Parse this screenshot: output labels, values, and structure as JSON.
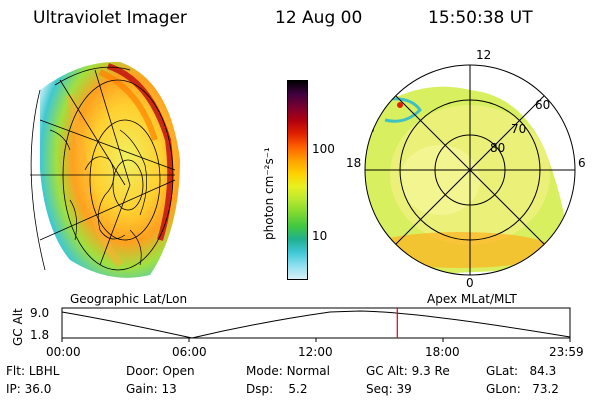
{
  "header": {
    "instrument": "Ultraviolet Imager",
    "date": "12 Aug 00",
    "time": "15:50:38 UT"
  },
  "panels": {
    "left_label": "Geographic Lat/Lon",
    "right_label": "Apex MLat/MLT"
  },
  "colorbar": {
    "unit_label": "photon cm⁻²s⁻¹",
    "ticks": [
      "100",
      "10"
    ],
    "colors": [
      "#000000",
      "#400040",
      "#7a0030",
      "#b00010",
      "#e02000",
      "#ff6000",
      "#ffa000",
      "#ffd000",
      "#e8f020",
      "#b8e830",
      "#80d830",
      "#40c840",
      "#20b090",
      "#40c8d8",
      "#90e0f0",
      "#d8f0f8"
    ]
  },
  "polar": {
    "mlt_labels": [
      "12",
      "6",
      "0",
      "18"
    ],
    "mlat_labels": [
      "60",
      "70",
      "80"
    ]
  },
  "altitude_plot": {
    "ylabel": "GC Alt",
    "yticks": [
      "9.0",
      "1.8"
    ],
    "xticks": [
      "00:00",
      "06:00",
      "12:00",
      "18:00",
      "23:59"
    ],
    "current_time_fraction": 0.66
  },
  "status": {
    "flt_label": "Flt:",
    "flt_value": "LBHL",
    "ip_label": "IP:",
    "ip_value": "36.0",
    "door_label": "Door:",
    "door_value": "Open",
    "gain_label": "Gain:",
    "gain_value": "13",
    "mode_label": "Mode:",
    "mode_value": "Normal",
    "dsp_label": "Dsp:",
    "dsp_value": "5.2",
    "gcalt_label": "GC Alt:",
    "gcalt_value": "9.3 Re",
    "seq_label": "Seq:",
    "seq_value": "39",
    "glat_label": "GLat:",
    "glat_value": "84.3",
    "glon_label": "GLon:",
    "glon_value": "73.2"
  }
}
